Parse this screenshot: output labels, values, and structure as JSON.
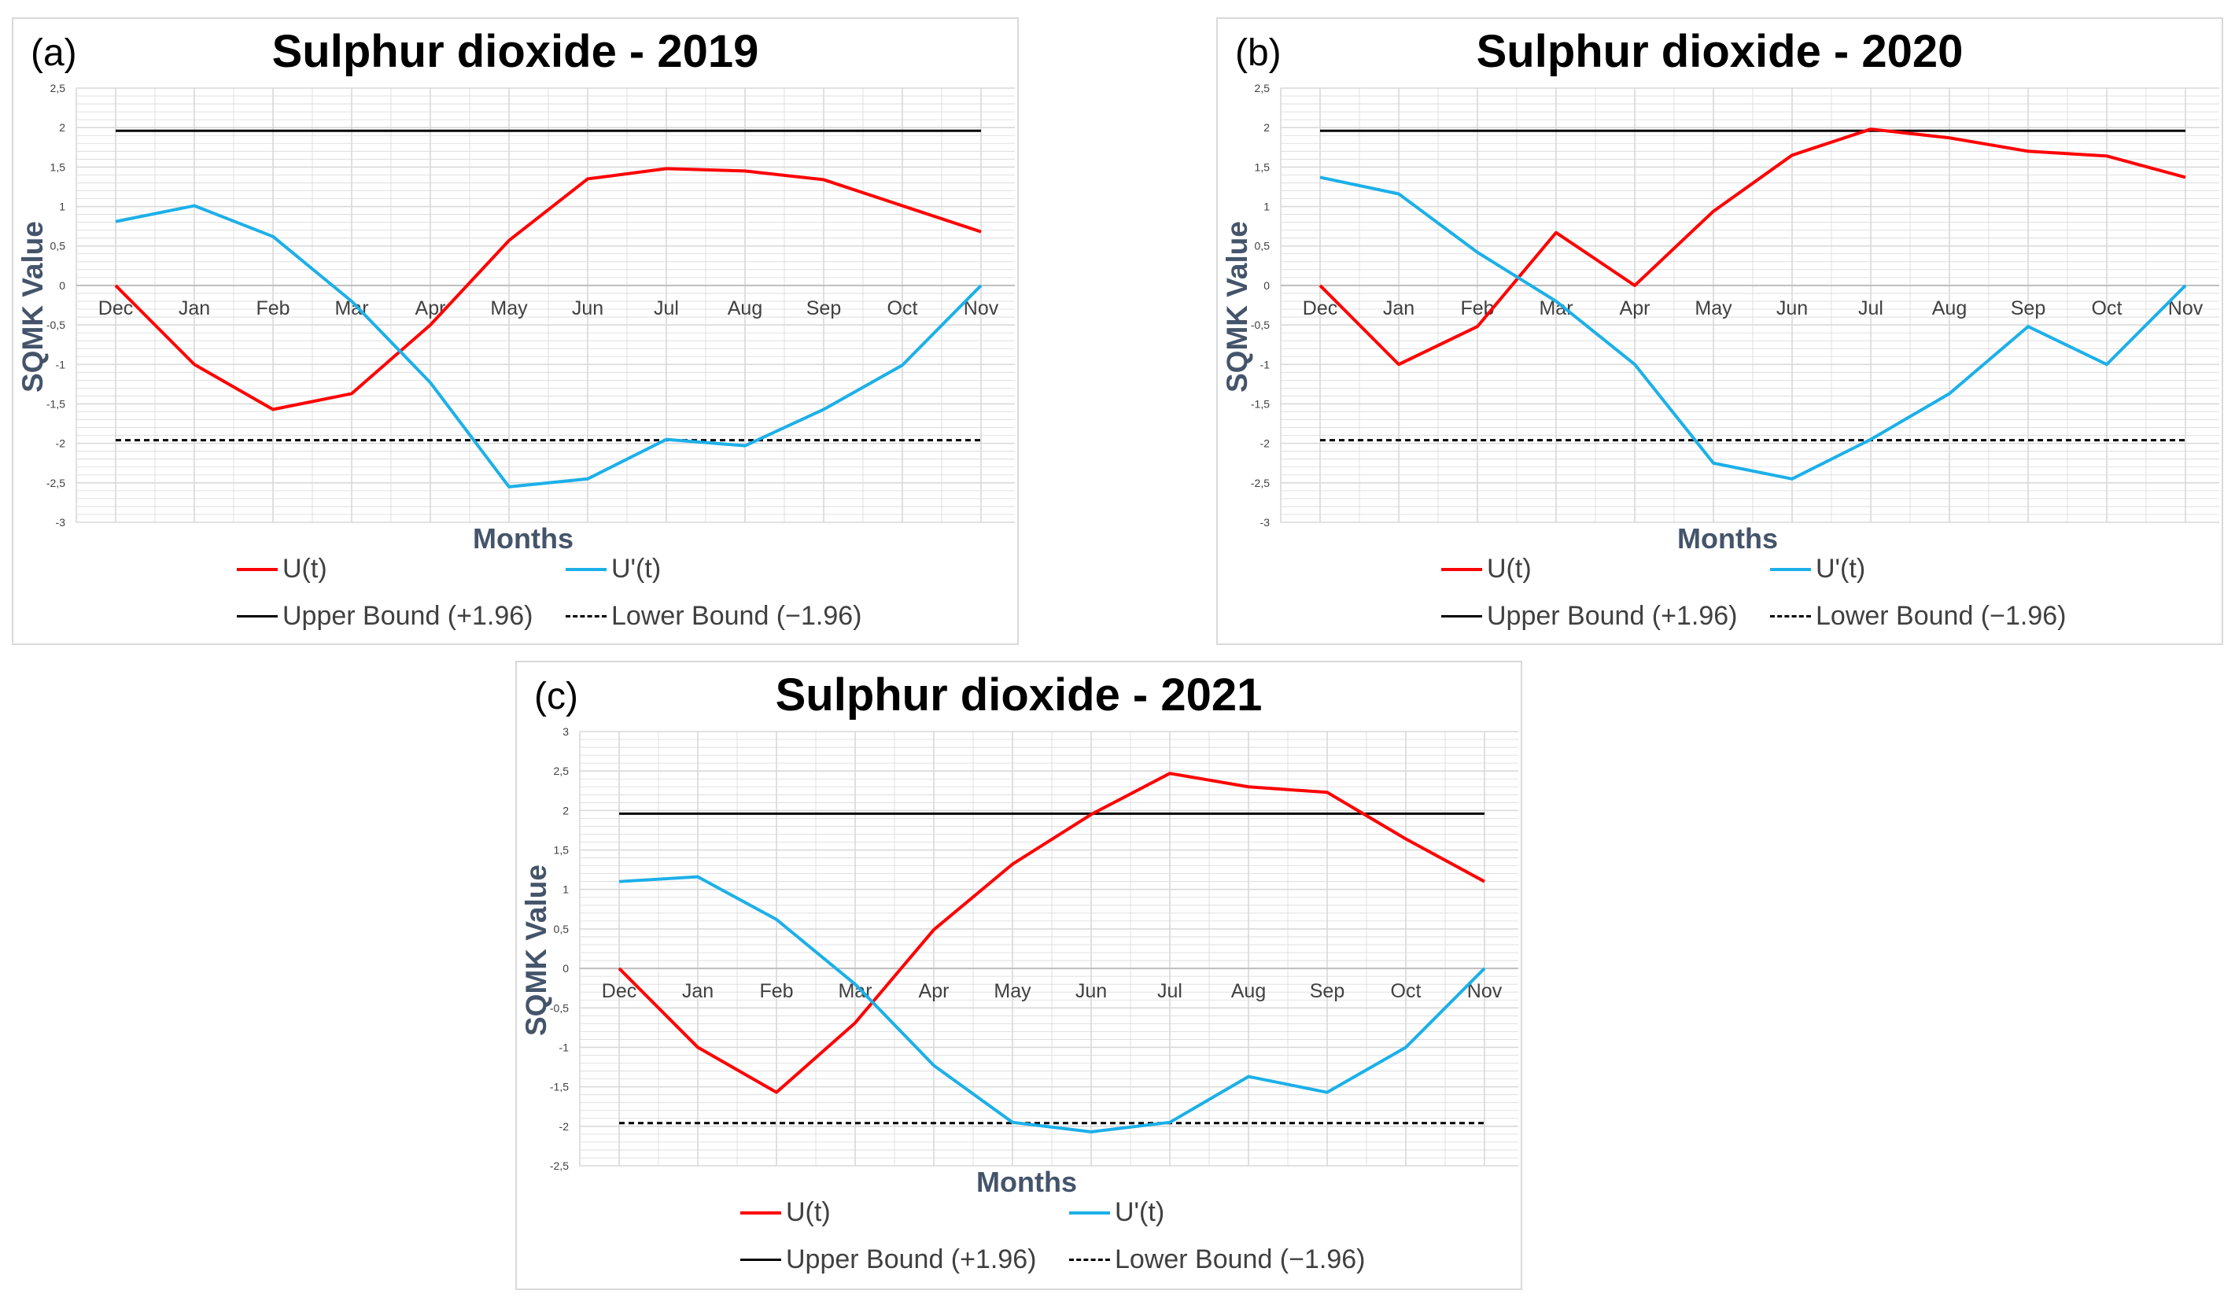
{
  "colors": {
    "u": "#ff0000",
    "u_prime": "#1cb0e8",
    "bound": "#000000",
    "grid": "#d9d9d9",
    "tick": "#404040"
  },
  "chart_data": [
    {
      "panel_label": "(a)",
      "type": "line",
      "title": "Sulphur dioxide - 2019",
      "xlabel": "Months",
      "ylabel": "SQMK Value",
      "categories": [
        "Dec",
        "Jan",
        "Feb",
        "Mar",
        "Apr",
        "May",
        "Jun",
        "Jul",
        "Aug",
        "Sep",
        "Oct",
        "Nov"
      ],
      "ylim": [
        -3,
        2.5
      ],
      "y_ticks": [
        "2,5",
        "2",
        "1,5",
        "1",
        "0,5",
        "0",
        "-0,5",
        "-1",
        "-1,5",
        "-2",
        "-2,5",
        "-3"
      ],
      "series": [
        {
          "name": "U(t)",
          "values": [
            0,
            -1,
            -1.57,
            -1.37,
            -0.5,
            0.57,
            1.35,
            1.48,
            1.45,
            1.34,
            1.01,
            0.68
          ]
        },
        {
          "name": "U'(t)",
          "values": [
            0.81,
            1.01,
            0.62,
            -0.2,
            -1.23,
            -2.55,
            -2.45,
            -1.95,
            -2.03,
            -1.57,
            -1.01,
            0
          ]
        }
      ],
      "upper_bound": 1.96,
      "lower_bound": -1.96,
      "legend": [
        "U(t)",
        "U'(t)",
        "Upper Bound (+1.96)",
        "Lower Bound (−1.96)"
      ]
    },
    {
      "panel_label": "(b)",
      "type": "line",
      "title": "Sulphur dioxide - 2020",
      "xlabel": "Months",
      "ylabel": "SQMK Value",
      "categories": [
        "Dec",
        "Jan",
        "Feb",
        "Mar",
        "Apr",
        "May",
        "Jun",
        "Jul",
        "Aug",
        "Sep",
        "Oct",
        "Nov"
      ],
      "ylim": [
        -3,
        2.5
      ],
      "y_ticks": [
        "2,5",
        "2",
        "1,5",
        "1",
        "0,5",
        "0",
        "-0,5",
        "-1",
        "-1,5",
        "-2",
        "-2,5",
        "-3"
      ],
      "series": [
        {
          "name": "U(t)",
          "values": [
            0,
            -1,
            -0.52,
            0.67,
            0,
            0.94,
            1.65,
            1.98,
            1.87,
            1.7,
            1.64,
            1.37
          ]
        },
        {
          "name": "U'(t)",
          "values": [
            1.37,
            1.16,
            0.42,
            -0.2,
            -1,
            -2.25,
            -2.45,
            -1.95,
            -1.37,
            -0.52,
            -1,
            0
          ]
        }
      ],
      "upper_bound": 1.96,
      "lower_bound": -1.96,
      "legend": [
        "U(t)",
        "U'(t)",
        "Upper Bound (+1.96)",
        "Lower Bound (−1.96)"
      ]
    },
    {
      "panel_label": "(c)",
      "type": "line",
      "title": "Sulphur dioxide - 2021",
      "xlabel": "Months",
      "ylabel": "SQMK Value",
      "categories": [
        "Dec",
        "Jan",
        "Feb",
        "Mar",
        "Apr",
        "May",
        "Jun",
        "Jul",
        "Aug",
        "Sep",
        "Oct",
        "Nov"
      ],
      "ylim": [
        -2.5,
        3
      ],
      "y_ticks": [
        "3",
        "2,5",
        "2",
        "1,5",
        "1",
        "0,5",
        "0",
        "-0,5",
        "-1",
        "-1,5",
        "-2",
        "-2,5"
      ],
      "series": [
        {
          "name": "U(t)",
          "values": [
            0,
            -1,
            -1.57,
            -0.69,
            0.49,
            1.32,
            1.95,
            2.47,
            2.3,
            2.23,
            1.64,
            1.1
          ]
        },
        {
          "name": "U'(t)",
          "values": [
            1.1,
            1.16,
            0.62,
            -0.2,
            -1.23,
            -1.95,
            -2.07,
            -1.95,
            -1.37,
            -1.57,
            -1,
            0
          ]
        }
      ],
      "upper_bound": 1.96,
      "lower_bound": -1.96,
      "legend": [
        "U(t)",
        "U'(t)",
        "Upper Bound (+1.96)",
        "Lower Bound (−1.96)"
      ]
    }
  ]
}
